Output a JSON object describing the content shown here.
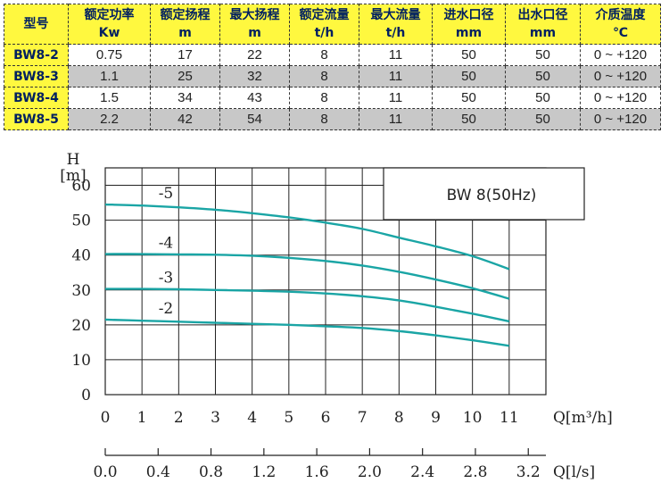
{
  "table": {
    "headers": [
      {
        "name": "型号",
        "unit": ""
      },
      {
        "name": "额定功率",
        "unit": "Kw"
      },
      {
        "name": "额定扬程",
        "unit": "m"
      },
      {
        "name": "最大扬程",
        "unit": "m"
      },
      {
        "name": "额定流量",
        "unit": "t/h"
      },
      {
        "name": "最大流量",
        "unit": "t/h"
      },
      {
        "name": "进水口径",
        "unit": "mm"
      },
      {
        "name": "出水口径",
        "unit": "mm"
      },
      {
        "name": "介质温度",
        "unit": "℃"
      }
    ],
    "rows": [
      [
        "BW8-2",
        "0.75",
        "17",
        "22",
        "8",
        "11",
        "50",
        "50",
        "0 ~ +120"
      ],
      [
        "BW8-3",
        "1.1",
        "25",
        "32",
        "8",
        "11",
        "50",
        "50",
        "0 ~ +120"
      ],
      [
        "BW8-4",
        "1.5",
        "34",
        "43",
        "8",
        "11",
        "50",
        "50",
        "0 ~ +120"
      ],
      [
        "BW8-5",
        "2.2",
        "42",
        "54",
        "8",
        "11",
        "50",
        "50",
        "0 ~ +120"
      ]
    ],
    "colors": {
      "header_bg": "#fff83f",
      "alt_row_bg": "#c8c8c8",
      "header_text": "#002060"
    }
  },
  "chart_data": {
    "type": "line",
    "legend_box": "BW 8(50Hz)",
    "y_axis": {
      "label_line1": "H",
      "label_line2": "[m]",
      "ylim": [
        0,
        65
      ],
      "ticks": [
        "0",
        "10",
        "20",
        "30",
        "40",
        "50",
        "60"
      ]
    },
    "x_axis": {
      "label": "Q[m³/h]",
      "xlim": [
        0,
        12
      ],
      "ticks": [
        "0",
        "1",
        "2",
        "3",
        "4",
        "5",
        "6",
        "7",
        "8",
        "9",
        "10",
        "11"
      ]
    },
    "x2_axis": {
      "label": "Q[l/s]",
      "ticks": [
        "0.0",
        "0.4",
        "0.8",
        "1.2",
        "1.6",
        "2.0",
        "2.4",
        "2.8",
        "3.2"
      ]
    },
    "grid": true,
    "line_color": "#1aa5a5",
    "series": [
      {
        "name": "-5",
        "x": [
          0,
          1,
          2,
          3,
          4,
          5,
          6,
          7,
          8,
          9,
          10,
          11
        ],
        "y": [
          54.5,
          54.2,
          53.7,
          53,
          52,
          50.8,
          49.3,
          47.5,
          45,
          42.5,
          39.7,
          36
        ]
      },
      {
        "name": "-4",
        "x": [
          0,
          1,
          2,
          3,
          4,
          5,
          6,
          7,
          8,
          9,
          10,
          11
        ],
        "y": [
          40.3,
          40.3,
          40.2,
          40.1,
          39.8,
          39.2,
          38.3,
          37,
          35.2,
          33,
          30.5,
          27.5
        ]
      },
      {
        "name": "-3",
        "x": [
          0,
          1,
          2,
          3,
          4,
          5,
          6,
          7,
          8,
          9,
          10,
          11
        ],
        "y": [
          30.3,
          30.3,
          30.2,
          30,
          29.8,
          29.5,
          29,
          28.2,
          27,
          25.2,
          23.2,
          21
        ]
      },
      {
        "name": "-2",
        "x": [
          0,
          1,
          2,
          3,
          4,
          5,
          6,
          7,
          8,
          9,
          10,
          11
        ],
        "y": [
          21.5,
          21.2,
          20.9,
          20.6,
          20.3,
          20,
          19.6,
          19.1,
          18.2,
          17,
          15.6,
          14
        ]
      }
    ]
  }
}
